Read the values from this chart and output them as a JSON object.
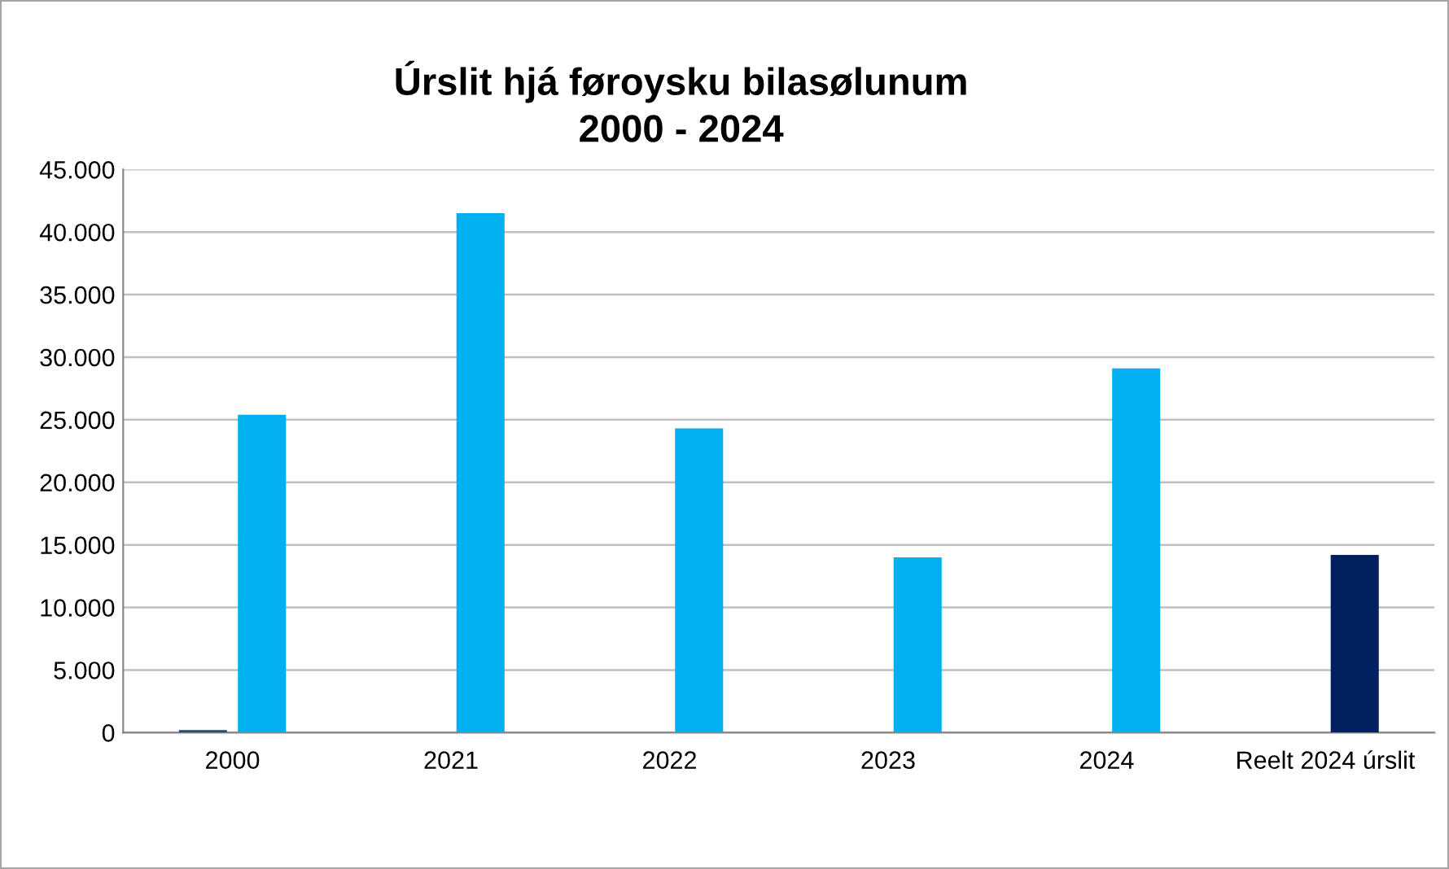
{
  "chart_data": {
    "type": "bar",
    "title": "Úrslit hjá føroysku bilasølunum\n2000 - 2024",
    "categories": [
      "2000",
      "2021",
      "2022",
      "2023",
      "2024",
      "Reelt 2024 úrslit"
    ],
    "series": [
      {
        "color": "#1f4e79",
        "values": [
          200,
          null,
          null,
          null,
          null,
          null
        ]
      },
      {
        "colors": [
          "#00b0f0",
          "#00b0f0",
          "#00b0f0",
          "#00b0f0",
          "#00b0f0",
          "#002060"
        ],
        "values": [
          25400,
          41500,
          24300,
          14000,
          29100,
          14200
        ]
      }
    ],
    "ylim": [
      0,
      45000
    ],
    "yticks": [
      0,
      {
        "value": 5000,
        "label": "5.000"
      },
      {
        "value": 10000,
        "label": "10.000"
      },
      {
        "value": 15000,
        "label": "15.000"
      },
      {
        "value": 20000,
        "label": "20.000"
      },
      {
        "value": 25000,
        "label": "25.000"
      },
      {
        "value": 30000,
        "label": "30.000"
      },
      {
        "value": 35000,
        "label": "35.000"
      },
      {
        "value": 40000,
        "label": "40.000"
      },
      {
        "value": 45000,
        "label": "45.000"
      }
    ],
    "grid": "y",
    "legend": false
  }
}
